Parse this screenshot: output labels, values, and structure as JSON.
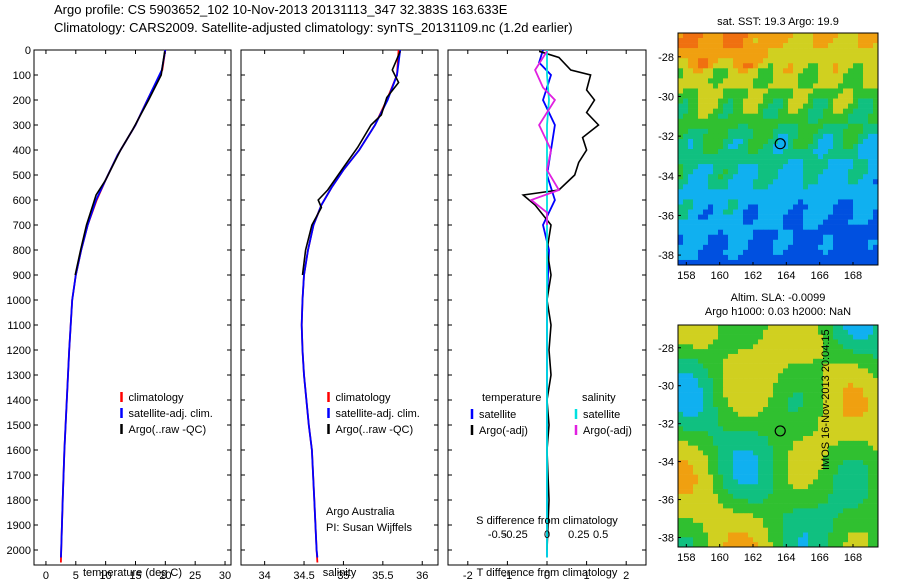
{
  "header": {
    "line1": "Argo profile: CS 5903652_102 10-Nov-2013 20131113_347 32.383S 163.633E",
    "line2": "Climatology: CARS2009. Satellite-adjusted climatology: synTS_20131109.nc (1.2d earlier)"
  },
  "footer_stamp": "IMOS 16-Nov-2013 20:04:15",
  "chart_data": [
    {
      "type": "line",
      "title": "",
      "xlabel": "temperature (deg C)",
      "ylabel": "",
      "xlim": [
        -2,
        31
      ],
      "ylim": [
        2060,
        0
      ],
      "xticks": [
        0,
        5,
        10,
        15,
        20,
        25,
        30
      ],
      "yticks": [
        0,
        100,
        200,
        300,
        400,
        500,
        600,
        700,
        800,
        900,
        1000,
        1100,
        1200,
        1300,
        1400,
        1500,
        1600,
        1700,
        1800,
        1900,
        2000
      ],
      "legend": [
        "climatology",
        "satellite-adj. clim.",
        "Argo(..raw -QC)"
      ],
      "legend_colors": [
        "#ff0000",
        "#0000ff",
        "#000000"
      ],
      "series": [
        {
          "name": "climatology",
          "color": "#ff0000",
          "points": [
            [
              20.0,
              0
            ],
            [
              19.5,
              80
            ],
            [
              17.0,
              200
            ],
            [
              15.0,
              300
            ],
            [
              12.0,
              420
            ],
            [
              10.0,
              520
            ],
            [
              8.5,
              600
            ],
            [
              7.0,
              700
            ],
            [
              5.9,
              800
            ],
            [
              5.0,
              900
            ],
            [
              4.4,
              1000
            ],
            [
              3.9,
              1200
            ],
            [
              3.5,
              1400
            ],
            [
              3.1,
              1600
            ],
            [
              2.8,
              1800
            ],
            [
              2.55,
              2000
            ],
            [
              2.5,
              2050
            ]
          ]
        },
        {
          "name": "satellite-adj. clim.",
          "color": "#0000ff",
          "points": [
            [
              20.0,
              0
            ],
            [
              19.4,
              80
            ],
            [
              17.0,
              200
            ],
            [
              15.0,
              300
            ],
            [
              12.0,
              420
            ],
            [
              10.0,
              520
            ],
            [
              8.4,
              600
            ],
            [
              7.0,
              700
            ],
            [
              5.9,
              800
            ],
            [
              5.0,
              900
            ],
            [
              4.4,
              1000
            ],
            [
              3.9,
              1200
            ],
            [
              3.5,
              1400
            ],
            [
              3.1,
              1600
            ],
            [
              2.8,
              1800
            ],
            [
              2.55,
              2000
            ],
            [
              2.5,
              2030
            ]
          ]
        },
        {
          "name": "Argo(..raw -QC)",
          "color": "#000000",
          "points": [
            [
              19.9,
              5
            ],
            [
              19.3,
              100
            ],
            [
              17.2,
              200
            ],
            [
              14.5,
              320
            ],
            [
              12.5,
              400
            ],
            [
              10.0,
              520
            ],
            [
              8.4,
              580
            ],
            [
              8.0,
              610
            ],
            [
              6.8,
              700
            ],
            [
              5.8,
              800
            ],
            [
              4.9,
              900
            ]
          ]
        }
      ]
    },
    {
      "type": "line",
      "title": "",
      "xlabel": "salinity",
      "ylabel": "",
      "xlim": [
        33.7,
        36.2
      ],
      "ylim": [
        2060,
        0
      ],
      "xticks": [
        34,
        34.5,
        35,
        35.5,
        36
      ],
      "legend": [
        "climatology",
        "satellite-adj. clim.",
        "Argo(..raw -QC)"
      ],
      "legend_colors": [
        "#ff0000",
        "#0000ff",
        "#000000"
      ],
      "annotation": [
        "Argo Australia",
        "PI: Susan Wijffels"
      ],
      "series": [
        {
          "name": "climatology",
          "color": "#ff0000",
          "points": [
            [
              35.7,
              0
            ],
            [
              35.68,
              100
            ],
            [
              35.55,
              200
            ],
            [
              35.4,
              300
            ],
            [
              35.2,
              400
            ],
            [
              35.0,
              480
            ],
            [
              34.85,
              550
            ],
            [
              34.72,
              620
            ],
            [
              34.62,
              700
            ],
            [
              34.55,
              800
            ],
            [
              34.5,
              900
            ],
            [
              34.48,
              1000
            ],
            [
              34.47,
              1100
            ],
            [
              34.48,
              1200
            ],
            [
              34.5,
              1300
            ],
            [
              34.53,
              1400
            ],
            [
              34.56,
              1500
            ],
            [
              34.6,
              1600
            ],
            [
              34.63,
              1800
            ],
            [
              34.66,
              2000
            ],
            [
              34.67,
              2050
            ]
          ]
        },
        {
          "name": "satellite-adj. clim.",
          "color": "#0000ff",
          "points": [
            [
              35.72,
              0
            ],
            [
              35.68,
              100
            ],
            [
              35.56,
              200
            ],
            [
              35.4,
              300
            ],
            [
              35.2,
              400
            ],
            [
              35.0,
              480
            ],
            [
              34.85,
              550
            ],
            [
              34.72,
              620
            ],
            [
              34.62,
              700
            ],
            [
              34.55,
              800
            ],
            [
              34.5,
              900
            ],
            [
              34.48,
              1000
            ],
            [
              34.47,
              1100
            ],
            [
              34.48,
              1200
            ],
            [
              34.5,
              1300
            ],
            [
              34.53,
              1400
            ],
            [
              34.56,
              1500
            ],
            [
              34.6,
              1600
            ],
            [
              34.63,
              1800
            ],
            [
              34.66,
              2000
            ],
            [
              34.67,
              2030
            ]
          ]
        },
        {
          "name": "Argo(..raw -QC)",
          "color": "#000000",
          "points": [
            [
              35.72,
              5
            ],
            [
              35.62,
              80
            ],
            [
              35.7,
              130
            ],
            [
              35.55,
              190
            ],
            [
              35.48,
              260
            ],
            [
              35.35,
              300
            ],
            [
              35.18,
              390
            ],
            [
              35.0,
              470
            ],
            [
              34.8,
              560
            ],
            [
              34.68,
              600
            ],
            [
              34.72,
              630
            ],
            [
              34.6,
              700
            ],
            [
              34.52,
              800
            ],
            [
              34.48,
              900
            ]
          ]
        }
      ]
    },
    {
      "type": "line",
      "title": "",
      "xlabel": "T difference from climatology",
      "xlabel_top": "S difference from climatology",
      "ylabel": "",
      "xlim": [
        -2.5,
        2.5
      ],
      "ylim": [
        2060,
        0
      ],
      "xticks": [
        -2,
        -1,
        0,
        1,
        2
      ],
      "xticks_top_labels": [
        "-0.5",
        "-0.25",
        "0",
        "0.25",
        "0.5"
      ],
      "legend_left_title": "temperature",
      "legend_right_title": "salinity",
      "legend": [
        "satellite",
        "Argo(-adj)",
        "satellite",
        "Argo(-adj)"
      ],
      "legend_colors": [
        "#0000ff",
        "#000000",
        "#00e0e0",
        "#e020e0"
      ],
      "series": [
        {
          "name": "temperature satellite",
          "color": "#0000ff",
          "points": [
            [
              -0.1,
              0
            ],
            [
              -0.2,
              50
            ],
            [
              0.1,
              100
            ],
            [
              -0.1,
              200
            ],
            [
              0.2,
              300
            ],
            [
              0.1,
              400
            ],
            [
              0.0,
              500
            ],
            [
              0.2,
              600
            ],
            [
              -0.1,
              700
            ],
            [
              0.05,
              800
            ],
            [
              0.0,
              1000
            ],
            [
              0.0,
              1500
            ],
            [
              0.0,
              2030
            ]
          ]
        },
        {
          "name": "temperature Argo(-adj)",
          "color": "#000000",
          "points": [
            [
              -0.2,
              5
            ],
            [
              0.3,
              30
            ],
            [
              0.6,
              80
            ],
            [
              1.1,
              100
            ],
            [
              1.0,
              160
            ],
            [
              1.2,
              200
            ],
            [
              1.0,
              250
            ],
            [
              1.3,
              300
            ],
            [
              0.9,
              350
            ],
            [
              1.0,
              400
            ],
            [
              0.8,
              450
            ],
            [
              0.7,
              500
            ],
            [
              0.3,
              560
            ],
            [
              -0.6,
              580
            ],
            [
              -0.3,
              620
            ],
            [
              0.1,
              700
            ],
            [
              0.0,
              800
            ],
            [
              0.1,
              900
            ],
            [
              0.0,
              1000
            ],
            [
              0.1,
              1100
            ],
            [
              0.05,
              1200
            ],
            [
              0.1,
              1300
            ],
            [
              0.0,
              1400
            ],
            [
              0.05,
              1500
            ],
            [
              0.0,
              1600
            ],
            [
              0.05,
              1800
            ],
            [
              0.0,
              2000
            ]
          ]
        },
        {
          "name": "salinity satellite",
          "color": "#00e0e0",
          "points": [
            [
              0.0,
              0
            ],
            [
              0.0,
              100
            ],
            [
              0.05,
              200
            ],
            [
              0.0,
              300
            ],
            [
              0.0,
              500
            ],
            [
              0.0,
              1000
            ],
            [
              0.0,
              2030
            ]
          ]
        },
        {
          "name": "salinity Argo(-adj)",
          "color": "#e020e0",
          "points": [
            [
              0.0,
              5
            ],
            [
              -0.3,
              80
            ],
            [
              -0.1,
              150
            ],
            [
              0.2,
              200
            ],
            [
              -0.2,
              300
            ],
            [
              0.1,
              400
            ],
            [
              0.0,
              480
            ],
            [
              0.3,
              560
            ],
            [
              -0.4,
              600
            ],
            [
              0.0,
              650
            ],
            [
              0.0,
              700
            ]
          ]
        }
      ]
    },
    {
      "type": "heatmap",
      "title": "sat. SST: 19.3 Argo: 19.9",
      "xlim": [
        157.5,
        169.5
      ],
      "ylim": [
        -38.5,
        -26.8
      ],
      "xticks": [
        158,
        160,
        162,
        164,
        166,
        168
      ],
      "yticks": [
        -28,
        -30,
        -32,
        -34,
        -36,
        -38
      ],
      "marker": [
        163.633,
        -32.383
      ]
    },
    {
      "type": "heatmap",
      "title": "Altim. SLA: -0.0099",
      "subtitle": "Argo h1000: 0.03 h2000: NaN",
      "xlim": [
        157.5,
        169.5
      ],
      "ylim": [
        -38.5,
        -26.8
      ],
      "xticks": [
        158,
        160,
        162,
        164,
        166,
        168
      ],
      "yticks": [
        -28,
        -30,
        -32,
        -34,
        -36,
        -38
      ],
      "marker": [
        163.633,
        -32.383
      ]
    }
  ]
}
